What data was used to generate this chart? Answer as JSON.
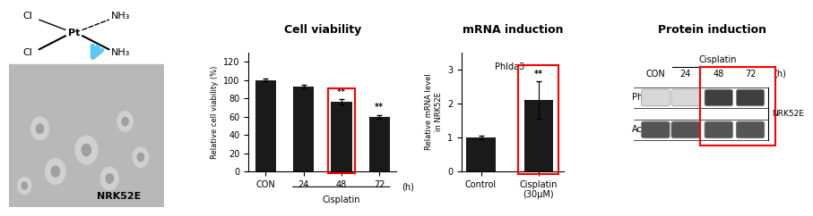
{
  "title_bg_color": "#F5A800",
  "title_text_color": "#000000",
  "panel_titles": [
    "Cell viability",
    "mRNA induction",
    "Protein induction"
  ],
  "bar_color": "#1a1a1a",
  "viability_values": [
    100,
    93,
    76,
    60
  ],
  "viability_errors": [
    1.5,
    2,
    3,
    2
  ],
  "viability_labels": [
    "CON",
    "24",
    "48",
    "72"
  ],
  "viability_xlabel": "Cisplatin",
  "viability_ylabel": "Relative cell viability (%)",
  "viability_xunit": "(h)",
  "viability_ylim": [
    0,
    130
  ],
  "viability_yticks": [
    0,
    20,
    40,
    60,
    80,
    100,
    120
  ],
  "viability_sig": [
    "",
    "",
    "**",
    "**"
  ],
  "viability_highlight_idx": 2,
  "mrna_values": [
    1.0,
    2.1
  ],
  "mrna_errors": [
    0.05,
    0.55
  ],
  "mrna_labels": [
    "Control",
    "Cisplatin\n(30μM)"
  ],
  "mrna_ylabel": "Relative mRNA level\nin NRK52E",
  "mrna_title_label": "Phlda3",
  "mrna_ylim": [
    0,
    3.5
  ],
  "mrna_yticks": [
    0,
    1,
    2,
    3
  ],
  "mrna_sig": [
    "",
    "**"
  ],
  "mrna_highlight_idx": 1,
  "protein_labels": [
    "CON",
    "24",
    "48",
    "72"
  ],
  "protein_xunit": "(h)",
  "protein_cisplatin_label": "Cisplatin",
  "protein_phlda3_label": "Phlda3",
  "protein_actin_label": "Actin",
  "protein_nrk52e_label": "NRK52E",
  "background_color": "#ffffff"
}
